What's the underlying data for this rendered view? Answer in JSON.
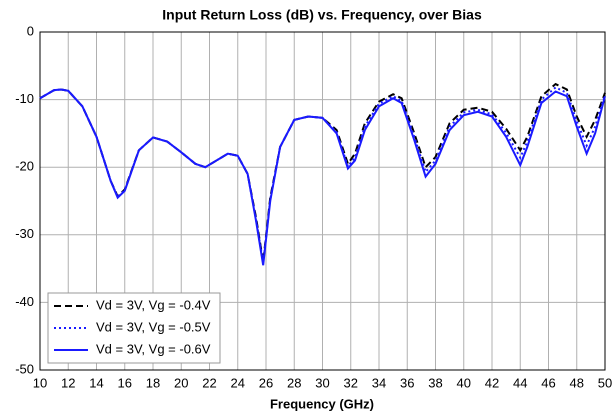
{
  "chart_data": {
    "type": "line",
    "title": "Input Return Loss (dB) vs. Frequency, over Bias",
    "x_label": "Frequency (GHz)",
    "x": [
      10,
      11,
      11.5,
      12,
      13,
      14,
      15,
      15.5,
      16,
      17,
      18,
      19,
      20,
      21,
      21.7,
      22.5,
      23.3,
      24,
      24.7,
      25.3,
      25.8,
      26.3,
      27,
      28,
      29,
      30,
      31,
      31.8,
      32.3,
      33,
      34,
      35,
      35.6,
      36.5,
      37.3,
      38,
      39,
      40,
      41,
      42,
      43,
      44,
      44.5,
      45.5,
      46.5,
      47.3,
      48,
      48.7,
      49.3,
      50
    ],
    "series": [
      {
        "name": "Vd = 3V, Vg = -0.4V",
        "color": "#000000",
        "style": "dashed",
        "values": [
          -9.8,
          -8.6,
          -8.5,
          -8.7,
          -11,
          -15.5,
          -22,
          -24.3,
          -23.3,
          -17.5,
          -15.6,
          -16.2,
          -17.8,
          -19.5,
          -20,
          -19,
          -18,
          -18.3,
          -21,
          -27.5,
          -34,
          -24.5,
          -17,
          -13,
          -12.5,
          -12.7,
          -14.5,
          -19.5,
          -18,
          -13.5,
          -10.3,
          -9.2,
          -9.8,
          -15,
          -20,
          -18.5,
          -13.5,
          -11.5,
          -11.2,
          -11.8,
          -14.3,
          -17.5,
          -15.5,
          -9.5,
          -7.7,
          -8.5,
          -12.5,
          -15.5,
          -13,
          -9
        ]
      },
      {
        "name": "Vd = 3V, Vg = -0.5V",
        "color": "#1a1aff",
        "style": "dotted",
        "values": [
          -9.8,
          -8.6,
          -8.5,
          -8.7,
          -11,
          -15.5,
          -22,
          -24.4,
          -23.4,
          -17.5,
          -15.6,
          -16.2,
          -17.8,
          -19.5,
          -20,
          -19,
          -18,
          -18.3,
          -21,
          -27.8,
          -34.2,
          -24.8,
          -17,
          -13,
          -12.5,
          -12.7,
          -14.8,
          -19.9,
          -18.5,
          -14,
          -10.6,
          -9.5,
          -10.2,
          -15.5,
          -20.7,
          -19,
          -14,
          -11.9,
          -11.5,
          -12.2,
          -14.9,
          -18.6,
          -16.2,
          -10,
          -8.2,
          -9,
          -13.2,
          -16.8,
          -14,
          -9.3
        ]
      },
      {
        "name": "Vd = 3V, Vg = -0.6V",
        "color": "#1a1aff",
        "style": "solid",
        "values": [
          -9.8,
          -8.6,
          -8.5,
          -8.7,
          -11,
          -15.5,
          -22,
          -24.5,
          -23.5,
          -17.5,
          -15.6,
          -16.2,
          -17.8,
          -19.5,
          -20,
          -19,
          -18,
          -18.3,
          -21,
          -28,
          -34.5,
          -25,
          -17,
          -13,
          -12.5,
          -12.7,
          -15,
          -20.2,
          -19,
          -14.5,
          -11,
          -9.8,
          -10.5,
          -16,
          -21.4,
          -19.5,
          -14.5,
          -12.3,
          -11.8,
          -12.5,
          -15.5,
          -19.7,
          -17,
          -10.5,
          -8.8,
          -9.5,
          -14,
          -18,
          -15,
          -9.5
        ]
      }
    ],
    "xlim": [
      10,
      50
    ],
    "xticks": [
      10,
      12,
      14,
      16,
      18,
      20,
      22,
      24,
      26,
      28,
      30,
      32,
      34,
      36,
      38,
      40,
      42,
      44,
      46,
      48,
      50
    ],
    "ylim": [
      -50,
      0
    ],
    "yticks": [
      -50,
      -40,
      -30,
      -20,
      -10,
      0
    ],
    "grid": true,
    "legend": "lower left"
  }
}
